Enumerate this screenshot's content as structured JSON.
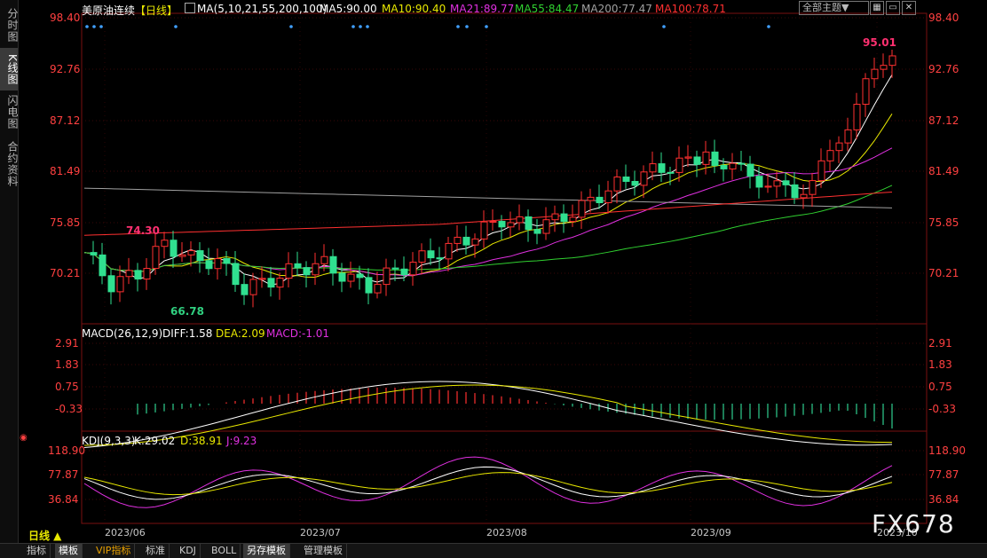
{
  "sidebar": {
    "tabs": [
      {
        "label": "分时图",
        "active": false
      },
      {
        "label": "K线图",
        "active": true
      },
      {
        "label": "闪电图",
        "active": false
      },
      {
        "label": "合约资料",
        "active": false
      }
    ]
  },
  "header": {
    "instrument": "美原油连续",
    "period_tag": "【日线】",
    "ma_label": "MA(5,10,21,55,200,100)",
    "ma5": "MA5:90.00",
    "ma10": "MA10:90.40",
    "ma21": "MA21:89.77",
    "ma55": "MA55:84.47",
    "ma200": "MA200:77.47",
    "ma100": "MA100:78.71",
    "theme_select": "全部主题▼",
    "ma_colors": {
      "ma5": "#ffffff",
      "ma10": "#e8e800",
      "ma21": "#e030e0",
      "ma55": "#30d030",
      "ma200": "#a0a0a0",
      "ma100": "#ff3030"
    }
  },
  "price_axis": {
    "ticks": [
      "98.40",
      "92.76",
      "87.12",
      "81.49",
      "75.85",
      "70.21"
    ]
  },
  "annotations": {
    "high": "95.01",
    "low": "66.78",
    "mid_high": "74.30"
  },
  "macd": {
    "label": "MACD(26,12,9)",
    "diff": "DIFF:1.58",
    "dea": "DEA:2.09",
    "macd": "MACD:-1.01",
    "ticks": [
      "2.91",
      "1.83",
      "0.75",
      "-0.33"
    ]
  },
  "kdj": {
    "label": "KDJ(9,3,3)",
    "k": "K:29.02",
    "d": "D:38.91",
    "j": "J:9.23",
    "ticks": [
      "118.90",
      "77.87",
      "36.84"
    ]
  },
  "xaxis": {
    "labels": [
      "2023/06",
      "2023/07",
      "2023/08",
      "2023/09",
      "2023/10"
    ]
  },
  "period_button": "日线 ▲",
  "bottom_tabs": [
    {
      "label": "指标",
      "active": false
    },
    {
      "label": "模板",
      "active": true
    },
    {
      "label": "VIP指标",
      "active": false,
      "vip": true
    },
    {
      "label": "标准",
      "active": false
    },
    {
      "label": "KDJ",
      "active": false
    },
    {
      "label": "BOLL",
      "active": false
    },
    {
      "label": "另存模板",
      "active": true
    },
    {
      "label": "管理模板",
      "active": false
    }
  ],
  "watermark": "FX678"
}
